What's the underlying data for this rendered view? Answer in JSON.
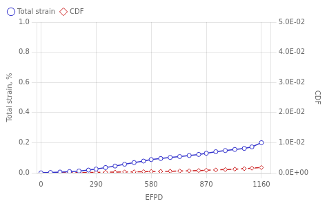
{
  "chart_data": {
    "type": "line",
    "xlabel": "EFPD",
    "ylabel": "Total strain, %",
    "y2label": "CDF",
    "x": [
      0,
      50,
      100,
      150,
      200,
      250,
      290,
      340,
      390,
      440,
      490,
      540,
      580,
      630,
      680,
      730,
      780,
      830,
      870,
      920,
      970,
      1020,
      1070,
      1110,
      1160
    ],
    "xlim": [
      -20,
      1210
    ],
    "xticks": [
      0,
      290,
      580,
      870,
      1160
    ],
    "ylim": [
      0.0,
      1.0
    ],
    "yticks": [
      {
        "value": 0.0,
        "label": "0.0"
      },
      {
        "value": 0.2,
        "label": "0.2"
      },
      {
        "value": 0.4,
        "label": "0.4"
      },
      {
        "value": 0.6,
        "label": "0.6"
      },
      {
        "value": 0.8,
        "label": "0.8"
      },
      {
        "value": 1.0,
        "label": "1.0"
      }
    ],
    "y2lim": [
      0.0,
      0.05
    ],
    "y2ticks": [
      {
        "value": 0.0,
        "label": "0.0E+00"
      },
      {
        "value": 0.01,
        "label": "1.0E-02"
      },
      {
        "value": 0.02,
        "label": "2.0E-02"
      },
      {
        "value": 0.03,
        "label": "3.0E-02"
      },
      {
        "value": 0.04,
        "label": "4.0E-02"
      },
      {
        "value": 0.05,
        "label": "5.0E-02"
      }
    ],
    "grid": true,
    "legend": "upper left",
    "series": [
      {
        "name": "Total strain",
        "color": "#3333cc",
        "marker": "circle",
        "line_style": "solid",
        "values": [
          0.0,
          0.002,
          0.005,
          0.008,
          0.012,
          0.018,
          0.025,
          0.035,
          0.045,
          0.057,
          0.068,
          0.078,
          0.088,
          0.095,
          0.102,
          0.108,
          0.115,
          0.122,
          0.13,
          0.14,
          0.148,
          0.155,
          0.162,
          0.172,
          0.2
        ]
      },
      {
        "name": "CDF",
        "axis": "y2",
        "color": "#cc2222",
        "marker": "diamond",
        "line_style": "dashed",
        "values": [
          0.0,
          1e-05,
          2e-05,
          4e-05,
          6e-05,
          9e-05,
          0.00013,
          0.00018,
          0.00023,
          0.00028,
          0.00033,
          0.00038,
          0.00043,
          0.00048,
          0.00053,
          0.0006,
          0.00068,
          0.00076,
          0.00085,
          0.00095,
          0.00108,
          0.00122,
          0.00138,
          0.00155,
          0.00175
        ]
      }
    ]
  }
}
